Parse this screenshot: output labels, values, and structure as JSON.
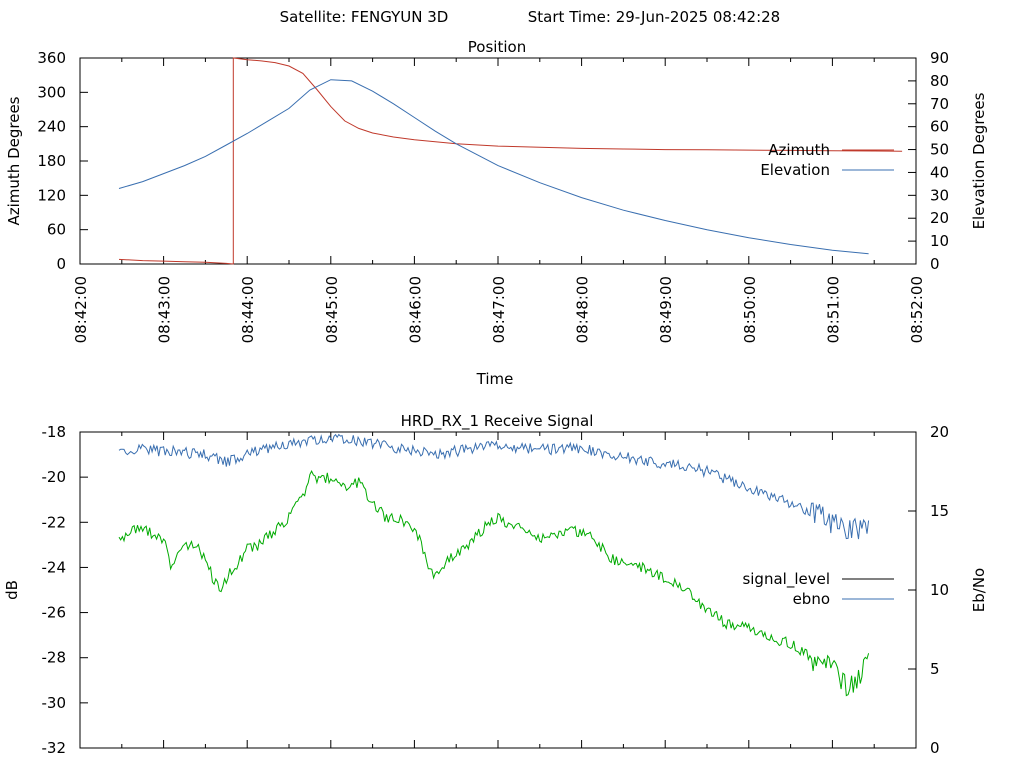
{
  "header": {
    "satellite_text": "Satellite: FENGYUN 3D",
    "start_time_text": "Start Time: 29-Jun-2025 08:42:28"
  },
  "chart_data": [
    {
      "type": "line",
      "title": "Position",
      "xlabel": "Time",
      "ylabel": "Azimuth Degrees",
      "y2label": "Elevation Degrees",
      "x_ticks": [
        "08:42:00",
        "08:43:00",
        "08:44:00",
        "08:45:00",
        "08:46:00",
        "08:47:00",
        "08:48:00",
        "08:49:00",
        "08:50:00",
        "08:51:00",
        "08:52:00"
      ],
      "xlim": [
        "08:42:00",
        "08:52:00"
      ],
      "ylim": [
        0,
        360
      ],
      "y_ticks": [
        0,
        60,
        120,
        180,
        240,
        300,
        360
      ],
      "y2lim": [
        0,
        90
      ],
      "y2_ticks": [
        0,
        10,
        20,
        30,
        40,
        50,
        60,
        70,
        80,
        90
      ],
      "legend_position": "right",
      "grid": false,
      "series": [
        {
          "name": "Azimuth",
          "axis": "y",
          "color": "#c0392b",
          "points": [
            [
              "08:42:28",
              8
            ],
            [
              "08:42:45",
              6
            ],
            [
              "08:43:00",
              5
            ],
            [
              "08:43:15",
              4
            ],
            [
              "08:43:30",
              3
            ],
            [
              "08:43:45",
              1
            ],
            [
              "08:43:50",
              0
            ],
            [
              "08:43:50",
              360
            ],
            [
              "08:44:00",
              357
            ],
            [
              "08:44:10",
              355
            ],
            [
              "08:44:20",
              352
            ],
            [
              "08:44:30",
              346
            ],
            [
              "08:44:40",
              333
            ],
            [
              "08:44:50",
              305
            ],
            [
              "08:45:00",
              275
            ],
            [
              "08:45:10",
              250
            ],
            [
              "08:45:20",
              237
            ],
            [
              "08:45:30",
              229
            ],
            [
              "08:45:45",
              222
            ],
            [
              "08:46:00",
              217
            ],
            [
              "08:46:30",
              210
            ],
            [
              "08:47:00",
              206
            ],
            [
              "08:47:30",
              204
            ],
            [
              "08:48:00",
              202
            ],
            [
              "08:48:30",
              201
            ],
            [
              "08:49:00",
              200
            ],
            [
              "08:49:30",
              199.5
            ],
            [
              "08:50:00",
              199
            ],
            [
              "08:50:30",
              198.5
            ],
            [
              "08:51:00",
              198
            ],
            [
              "08:51:30",
              197.5
            ],
            [
              "08:51:50",
              197
            ]
          ]
        },
        {
          "name": "Elevation",
          "axis": "y2",
          "color": "#3a6fb0",
          "points": [
            [
              "08:42:28",
              33
            ],
            [
              "08:42:45",
              36
            ],
            [
              "08:43:00",
              39.5
            ],
            [
              "08:43:15",
              43
            ],
            [
              "08:43:30",
              47
            ],
            [
              "08:43:45",
              52
            ],
            [
              "08:44:00",
              57
            ],
            [
              "08:44:15",
              62.5
            ],
            [
              "08:44:30",
              68
            ],
            [
              "08:44:45",
              76
            ],
            [
              "08:45:00",
              80.5
            ],
            [
              "08:45:15",
              80
            ],
            [
              "08:45:30",
              75.5
            ],
            [
              "08:45:45",
              70
            ],
            [
              "08:46:00",
              64
            ],
            [
              "08:46:15",
              58
            ],
            [
              "08:46:30",
              52.5
            ],
            [
              "08:47:00",
              43
            ],
            [
              "08:47:30",
              35.5
            ],
            [
              "08:48:00",
              29
            ],
            [
              "08:48:30",
              23.5
            ],
            [
              "08:49:00",
              19
            ],
            [
              "08:49:30",
              15
            ],
            [
              "08:50:00",
              11.5
            ],
            [
              "08:50:30",
              8.5
            ],
            [
              "08:51:00",
              6
            ],
            [
              "08:51:26",
              4.5
            ]
          ]
        }
      ]
    },
    {
      "type": "line",
      "title": "HRD_RX_1 Receive Signal",
      "xlabel": "",
      "ylabel": "dB",
      "y2label": "Eb/No",
      "xlim": [
        "08:42:00",
        "08:52:00"
      ],
      "ylim": [
        -32,
        -18
      ],
      "y_ticks": [
        -32,
        -30,
        -28,
        -26,
        -24,
        -22,
        -20,
        -18
      ],
      "y2lim": [
        0,
        20
      ],
      "y2_ticks": [
        0,
        5,
        10,
        15,
        20
      ],
      "legend_position": "right",
      "grid": false,
      "series": [
        {
          "name": "signal_level",
          "axis": "y",
          "color": "#00aa00",
          "points": [
            [
              "08:42:28",
              -22.8
            ],
            [
              "08:42:40",
              -22.3
            ],
            [
              "08:42:50",
              -22.4
            ],
            [
              "08:43:00",
              -22.8
            ],
            [
              "08:43:05",
              -23.9
            ],
            [
              "08:43:15",
              -23.0
            ],
            [
              "08:43:25",
              -23.2
            ],
            [
              "08:43:30",
              -23.6
            ],
            [
              "08:43:35",
              -24.4
            ],
            [
              "08:43:40",
              -25.0
            ],
            [
              "08:43:45",
              -24.5
            ],
            [
              "08:43:55",
              -23.6
            ],
            [
              "08:44:00",
              -23.2
            ],
            [
              "08:44:10",
              -23.0
            ],
            [
              "08:44:15",
              -22.6
            ],
            [
              "08:44:25",
              -22.1
            ],
            [
              "08:44:30",
              -21.7
            ],
            [
              "08:44:40",
              -20.9
            ],
            [
              "08:44:45",
              -19.9
            ],
            [
              "08:44:55",
              -20.1
            ],
            [
              "08:45:00",
              -20.0
            ],
            [
              "08:45:10",
              -20.4
            ],
            [
              "08:45:20",
              -20.2
            ],
            [
              "08:45:30",
              -21.2
            ],
            [
              "08:45:40",
              -21.8
            ],
            [
              "08:45:50",
              -21.9
            ],
            [
              "08:46:00",
              -22.5
            ],
            [
              "08:46:05",
              -22.9
            ],
            [
              "08:46:10",
              -24.2
            ],
            [
              "08:46:15",
              -24.4
            ],
            [
              "08:46:25",
              -23.6
            ],
            [
              "08:46:35",
              -23.2
            ],
            [
              "08:46:45",
              -22.5
            ],
            [
              "08:47:00",
              -21.8
            ],
            [
              "08:47:10",
              -22.1
            ],
            [
              "08:47:20",
              -22.4
            ],
            [
              "08:47:30",
              -22.7
            ],
            [
              "08:47:45",
              -22.5
            ],
            [
              "08:48:00",
              -22.4
            ],
            [
              "08:48:10",
              -22.8
            ],
            [
              "08:48:20",
              -23.6
            ],
            [
              "08:48:30",
              -23.8
            ],
            [
              "08:48:45",
              -24.0
            ],
            [
              "08:49:00",
              -24.5
            ],
            [
              "08:49:15",
              -25.0
            ],
            [
              "08:49:30",
              -25.9
            ],
            [
              "08:49:45",
              -26.5
            ],
            [
              "08:50:00",
              -26.6
            ],
            [
              "08:50:15",
              -27.1
            ],
            [
              "08:50:30",
              -27.4
            ],
            [
              "08:50:45",
              -28.0
            ],
            [
              "08:51:00",
              -28.5
            ],
            [
              "08:51:10",
              -29.2
            ],
            [
              "08:51:20",
              -29.0
            ],
            [
              "08:51:26",
              -27.8
            ]
          ]
        },
        {
          "name": "ebno",
          "axis": "y2",
          "color": "#3a6fb0",
          "points": [
            [
              "08:42:28",
              18.6
            ],
            [
              "08:42:40",
              18.9
            ],
            [
              "08:43:00",
              18.8
            ],
            [
              "08:43:15",
              18.7
            ],
            [
              "08:43:30",
              18.6
            ],
            [
              "08:43:45",
              18.1
            ],
            [
              "08:44:00",
              18.6
            ],
            [
              "08:44:15",
              19.0
            ],
            [
              "08:44:30",
              19.3
            ],
            [
              "08:44:45",
              19.5
            ],
            [
              "08:45:00",
              19.6
            ],
            [
              "08:45:15",
              19.5
            ],
            [
              "08:45:30",
              19.3
            ],
            [
              "08:45:45",
              19.0
            ],
            [
              "08:46:00",
              18.8
            ],
            [
              "08:46:15",
              18.6
            ],
            [
              "08:46:30",
              18.8
            ],
            [
              "08:46:45",
              19.0
            ],
            [
              "08:47:00",
              19.1
            ],
            [
              "08:47:15",
              19.0
            ],
            [
              "08:47:30",
              18.9
            ],
            [
              "08:47:45",
              18.9
            ],
            [
              "08:48:00",
              19.0
            ],
            [
              "08:48:15",
              18.6
            ],
            [
              "08:48:30",
              18.4
            ],
            [
              "08:48:45",
              18.2
            ],
            [
              "08:49:00",
              18.0
            ],
            [
              "08:49:15",
              17.8
            ],
            [
              "08:49:30",
              17.5
            ],
            [
              "08:49:45",
              17.0
            ],
            [
              "08:50:00",
              16.5
            ],
            [
              "08:50:15",
              16.0
            ],
            [
              "08:50:30",
              15.5
            ],
            [
              "08:50:45",
              14.9
            ],
            [
              "08:51:00",
              14.3
            ],
            [
              "08:51:10",
              13.7
            ],
            [
              "08:51:20",
              13.8
            ],
            [
              "08:51:26",
              14.4
            ]
          ],
          "legend_color": "#3a6fb0"
        }
      ],
      "legend_entries": [
        {
          "label": "signal_level",
          "color": "#000000"
        },
        {
          "label": "ebno",
          "color": "#3a6fb0"
        }
      ]
    }
  ]
}
